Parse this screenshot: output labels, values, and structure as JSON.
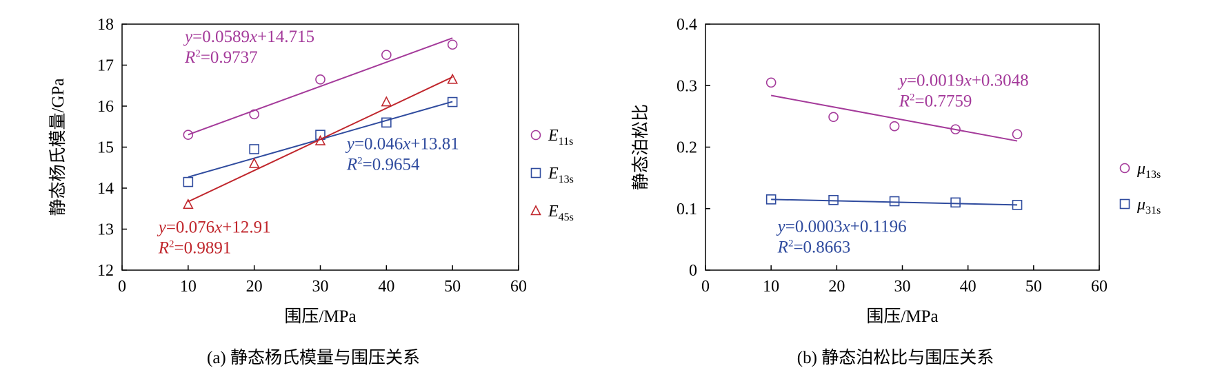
{
  "colors": {
    "purple": "#a43a9a",
    "blue": "#2f4b9e",
    "red": "#c0262c",
    "axis": "#000000"
  },
  "chart_data": [
    {
      "type": "scatter",
      "caption": "(a) 静态杨氏模量与围压关系",
      "xlabel": "围压/MPa",
      "ylabel": "静态杨氏模量/GPa",
      "xlim": [
        0,
        60
      ],
      "ylim": [
        12,
        18
      ],
      "xticks": [
        0,
        10,
        20,
        30,
        40,
        50,
        60
      ],
      "yticks": [
        12,
        13,
        14,
        15,
        16,
        17,
        18
      ],
      "grid": false,
      "legend_position": "right",
      "series": [
        {
          "name": "E11s",
          "marker": "circle",
          "color": "#a43a9a",
          "x": [
            10,
            20,
            30,
            40,
            50
          ],
          "y": [
            15.3,
            15.8,
            16.65,
            17.25,
            17.5
          ],
          "fit": {
            "slope": 0.0589,
            "intercept": 14.715,
            "x_range": [
              10,
              50
            ],
            "equation": {
              "prefix": "y",
              "mid": "=0.0589",
              "var": "x",
              "suffix": "+14.715"
            },
            "r2": {
              "prefix": "R",
              "sup": "2",
              "suffix": "=0.9737"
            },
            "label_anchor": [
              9.5,
              17.56
            ]
          }
        },
        {
          "name": "E13s",
          "marker": "square",
          "color": "#2f4b9e",
          "x": [
            10,
            20,
            30,
            40,
            50
          ],
          "y": [
            14.15,
            14.95,
            15.3,
            15.6,
            16.1
          ],
          "fit": {
            "slope": 0.046,
            "intercept": 13.81,
            "x_range": [
              10,
              50
            ],
            "equation": {
              "prefix": "y",
              "mid": "=0.046",
              "var": "x",
              "suffix": "+13.81"
            },
            "r2": {
              "prefix": "R",
              "sup": "2",
              "suffix": "=0.9654"
            },
            "label_anchor": [
              34,
              14.95
            ]
          }
        },
        {
          "name": "E45s",
          "marker": "triangle",
          "color": "#c0262c",
          "x": [
            10,
            20,
            30,
            40,
            50
          ],
          "y": [
            13.6,
            14.6,
            15.15,
            16.1,
            16.65
          ],
          "fit": {
            "slope": 0.076,
            "intercept": 12.91,
            "x_range": [
              10,
              50
            ],
            "equation": {
              "prefix": "y",
              "mid": "=0.076",
              "var": "x",
              "suffix": "+12.91"
            },
            "r2": {
              "prefix": "R",
              "sup": "2",
              "suffix": "=0.9891"
            },
            "label_anchor": [
              5.5,
              12.92
            ]
          }
        }
      ],
      "legend": [
        {
          "main": "E",
          "sub": "11s",
          "marker": "circle",
          "color": "#a43a9a"
        },
        {
          "main": "E",
          "sub": "13s",
          "marker": "square",
          "color": "#2f4b9e"
        },
        {
          "main": "E",
          "sub": "45s",
          "marker": "triangle",
          "color": "#c0262c"
        }
      ]
    },
    {
      "type": "scatter",
      "caption": "(b) 静态泊松比与围压关系",
      "xlabel": "围压/MPa",
      "ylabel": "静态泊松比",
      "xlim": [
        0,
        60
      ],
      "ylim": [
        0,
        0.4
      ],
      "xticks": [
        0,
        10,
        20,
        30,
        40,
        50,
        60
      ],
      "yticks": [
        0,
        0.1,
        0.2,
        0.3,
        0.4
      ],
      "grid": false,
      "legend_position": "right",
      "series": [
        {
          "name": "μ13s",
          "marker": "circle",
          "color": "#a43a9a",
          "x": [
            10,
            19.5,
            28.8,
            38.1,
            47.5
          ],
          "y": [
            0.305,
            0.249,
            0.234,
            0.229,
            0.221
          ],
          "fit": {
            "x_range": [
              10,
              47.5
            ],
            "y_range": [
              0.284,
              0.21
            ],
            "equation": {
              "prefix": "y",
              "mid": "=0.0019",
              "var": "x",
              "suffix": "+0.3048"
            },
            "r2": {
              "prefix": "R",
              "sup": "2",
              "suffix": "=0.7759"
            },
            "label_anchor": [
              29.5,
              0.3
            ]
          }
        },
        {
          "name": "μ31s",
          "marker": "square",
          "color": "#2f4b9e",
          "x": [
            10,
            19.5,
            28.8,
            38.1,
            47.5
          ],
          "y": [
            0.115,
            0.114,
            0.112,
            0.11,
            0.106
          ],
          "fit": {
            "x_range": [
              10,
              47.5
            ],
            "y_range": [
              0.115,
              0.106
            ],
            "equation": {
              "prefix": "y",
              "mid": "=0.0003",
              "var": "x",
              "suffix": "+0.1196"
            },
            "r2": {
              "prefix": "R",
              "sup": "2",
              "suffix": "=0.8663"
            },
            "label_anchor": [
              11,
              0.062
            ]
          }
        }
      ],
      "legend": [
        {
          "main": "μ",
          "sub": "13s",
          "marker": "circle",
          "color": "#a43a9a"
        },
        {
          "main": "μ",
          "sub": "31s",
          "marker": "square",
          "color": "#2f4b9e"
        }
      ]
    }
  ]
}
